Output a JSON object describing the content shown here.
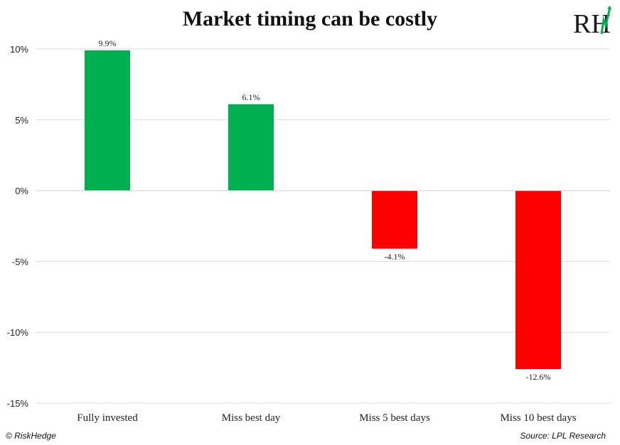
{
  "chart_data": {
    "type": "bar",
    "title": "Market timing can be costly",
    "categories": [
      "Fully invested",
      "Miss best day",
      "Miss 5 best days",
      "Miss 10 best days"
    ],
    "values": [
      9.9,
      6.1,
      -4.1,
      -12.6
    ],
    "data_labels": [
      "9.9%",
      "6.1%",
      "-4.1%",
      "-12.6%"
    ],
    "yticks": [
      10,
      5,
      0,
      -5,
      -10,
      -15
    ],
    "ytick_labels": [
      "10%",
      "5%",
      "0%",
      "-5%",
      "-10%",
      "-15%"
    ],
    "ylim": [
      -15,
      10
    ],
    "grid": true,
    "colors": {
      "positive": "#00b050",
      "negative": "#ff0000",
      "grid": "#d9d9d9"
    },
    "xlabel": "",
    "ylabel": ""
  },
  "logo": {
    "text": "RH",
    "icon": "riskhedge-logo-icon"
  },
  "footer": {
    "left": "© RiskHedge",
    "right": "Source: LPL Research"
  }
}
